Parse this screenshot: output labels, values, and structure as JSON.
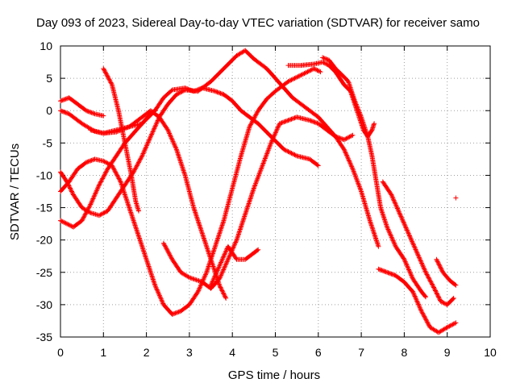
{
  "chart_data": {
    "type": "scatter",
    "title": "Day 093 of 2023, Sidereal Day-to-day VTEC variation (SDTVAR) for receiver samo",
    "xlabel": "GPS time / hours",
    "ylabel": "SDTVAR / TECUs",
    "xlim": [
      0,
      10
    ],
    "ylim": [
      -35,
      10
    ],
    "xticks": [
      "0",
      "1",
      "2",
      "3",
      "4",
      "5",
      "6",
      "7",
      "8",
      "9",
      "10"
    ],
    "yticks": [
      "-35",
      "-30",
      "-25",
      "-20",
      "-15",
      "-10",
      "-5",
      "0",
      "5",
      "10"
    ],
    "grid": true,
    "marker": "+",
    "color": "#ff0000",
    "series": [
      {
        "points": [
          [
            0,
            1.5
          ],
          [
            0.2,
            2
          ],
          [
            0.4,
            1
          ],
          [
            0.6,
            0
          ],
          [
            0.8,
            -0.5
          ],
          [
            1,
            -0.8
          ]
        ]
      },
      {
        "points": [
          [
            0,
            0
          ],
          [
            0.2,
            -0.5
          ],
          [
            0.5,
            -2
          ],
          [
            0.8,
            -3.2
          ],
          [
            1.0,
            -3.5
          ],
          [
            1.3,
            -3.3
          ],
          [
            1.6,
            -2.5
          ],
          [
            1.9,
            -1
          ],
          [
            2.1,
            0
          ],
          [
            2.3,
            -1
          ],
          [
            2.5,
            -3
          ],
          [
            2.7,
            -6
          ],
          [
            2.9,
            -10
          ],
          [
            3.1,
            -15
          ],
          [
            3.3,
            -19
          ],
          [
            3.5,
            -23
          ],
          [
            3.7,
            -27
          ],
          [
            3.85,
            -29
          ]
        ]
      },
      {
        "points": [
          [
            0.7,
            -3
          ],
          [
            1.0,
            -3.5
          ],
          [
            1.3,
            -3
          ],
          [
            1.6,
            -2.5
          ],
          [
            1.9,
            -2
          ],
          [
            2.2,
            0
          ],
          [
            2.4,
            2
          ],
          [
            2.6,
            3.2
          ],
          [
            2.9,
            3.5
          ],
          [
            3.1,
            3
          ],
          [
            3.3,
            3.5
          ],
          [
            3.6,
            3
          ],
          [
            3.8,
            2.5
          ],
          [
            4.0,
            1.5
          ],
          [
            4.2,
            0
          ],
          [
            4.4,
            -1
          ],
          [
            4.6,
            -2
          ],
          [
            4.9,
            -4
          ],
          [
            5.2,
            -6
          ],
          [
            5.5,
            -7
          ],
          [
            5.8,
            -7.5
          ],
          [
            6.0,
            -8.5
          ]
        ]
      },
      {
        "points": [
          [
            1.0,
            6.5
          ],
          [
            1.2,
            4
          ],
          [
            1.35,
            0
          ],
          [
            1.5,
            -5
          ],
          [
            1.65,
            -10
          ],
          [
            1.75,
            -14
          ],
          [
            1.82,
            -15.5
          ]
        ]
      },
      {
        "points": [
          [
            0,
            -9.5
          ],
          [
            0.15,
            -11
          ],
          [
            0.3,
            -13
          ],
          [
            0.5,
            -15
          ],
          [
            0.7,
            -15.8
          ],
          [
            0.9,
            -16.2
          ],
          [
            1.1,
            -15.5
          ],
          [
            1.3,
            -13.5
          ],
          [
            1.5,
            -11.5
          ],
          [
            1.7,
            -9.5
          ],
          [
            1.9,
            -7
          ],
          [
            2.1,
            -4
          ],
          [
            2.3,
            -1
          ],
          [
            2.5,
            1
          ],
          [
            2.7,
            2.5
          ],
          [
            2.9,
            3.2
          ],
          [
            3.2,
            3
          ],
          [
            3.5,
            4.5
          ],
          [
            3.8,
            6.5
          ],
          [
            4.1,
            8.5
          ],
          [
            4.3,
            9.3
          ],
          [
            4.5,
            8
          ],
          [
            4.8,
            6.5
          ],
          [
            5.0,
            5
          ],
          [
            5.2,
            3.5
          ],
          [
            5.4,
            2
          ],
          [
            5.7,
            0.5
          ],
          [
            6.0,
            -1
          ],
          [
            6.2,
            -2.5
          ],
          [
            6.4,
            -4
          ],
          [
            6.6,
            -6
          ],
          [
            6.8,
            -9
          ],
          [
            7.0,
            -12.5
          ],
          [
            7.2,
            -17
          ],
          [
            7.4,
            -21
          ]
        ]
      },
      {
        "points": [
          [
            0,
            -12.5
          ],
          [
            0.2,
            -11
          ],
          [
            0.4,
            -9
          ],
          [
            0.6,
            -8
          ],
          [
            0.8,
            -7.5
          ],
          [
            1.0,
            -7.8
          ],
          [
            1.2,
            -8.5
          ],
          [
            1.4,
            -11
          ],
          [
            1.6,
            -15
          ],
          [
            1.8,
            -19
          ],
          [
            2.0,
            -23
          ],
          [
            2.2,
            -27
          ],
          [
            2.4,
            -30
          ],
          [
            2.6,
            -31.5
          ],
          [
            2.8,
            -31
          ],
          [
            3.0,
            -30
          ],
          [
            3.2,
            -28
          ],
          [
            3.4,
            -25
          ],
          [
            3.6,
            -21
          ],
          [
            3.8,
            -17
          ],
          [
            4.0,
            -12
          ],
          [
            4.2,
            -7
          ],
          [
            4.4,
            -2.5
          ],
          [
            4.6,
            0
          ],
          [
            4.8,
            1.8
          ],
          [
            5.0,
            3
          ],
          [
            5.3,
            4.5
          ],
          [
            5.6,
            5.5
          ],
          [
            5.9,
            6.5
          ],
          [
            6.05,
            6
          ]
        ]
      },
      {
        "points": [
          [
            0,
            -17
          ],
          [
            0.3,
            -18
          ],
          [
            0.5,
            -17
          ],
          [
            0.7,
            -14.5
          ],
          [
            0.9,
            -11.5
          ],
          [
            1.1,
            -9
          ],
          [
            1.3,
            -7
          ],
          [
            1.5,
            -5
          ],
          [
            1.7,
            -3.5
          ],
          [
            1.9,
            -2
          ],
          [
            2.1,
            -0.5
          ],
          [
            2.2,
            0
          ]
        ]
      },
      {
        "points": [
          [
            2.4,
            -20.5
          ],
          [
            2.6,
            -23
          ],
          [
            2.8,
            -25
          ],
          [
            3.0,
            -25.8
          ],
          [
            3.3,
            -26.5
          ],
          [
            3.5,
            -27.5
          ],
          [
            3.7,
            -26
          ],
          [
            3.9,
            -23
          ],
          [
            4.1,
            -20
          ],
          [
            4.3,
            -16
          ],
          [
            4.5,
            -12
          ],
          [
            4.7,
            -8.5
          ],
          [
            4.9,
            -5
          ],
          [
            5.1,
            -2
          ],
          [
            5.3,
            -1.5
          ],
          [
            5.5,
            -1
          ],
          [
            5.8,
            -1.5
          ],
          [
            6.0,
            -2
          ],
          [
            6.2,
            -3
          ],
          [
            6.4,
            -4
          ],
          [
            6.6,
            -4.5
          ],
          [
            6.8,
            -3.8
          ]
        ]
      },
      {
        "points": [
          [
            3.5,
            -27
          ],
          [
            3.7,
            -24
          ],
          [
            3.9,
            -21
          ],
          [
            4.1,
            -23
          ],
          [
            4.3,
            -23
          ],
          [
            4.5,
            -22
          ],
          [
            4.6,
            -21.5
          ]
        ]
      },
      {
        "points": [
          [
            5.3,
            7
          ],
          [
            5.6,
            7
          ],
          [
            5.9,
            7.2
          ],
          [
            6.1,
            7.5
          ],
          [
            6.25,
            7
          ],
          [
            6.4,
            6
          ],
          [
            6.5,
            5
          ],
          [
            6.6,
            4
          ],
          [
            6.75,
            3
          ],
          [
            6.85,
            1
          ],
          [
            6.95,
            -1
          ],
          [
            7.05,
            -3
          ],
          [
            7.15,
            -4
          ],
          [
            7.25,
            -3
          ],
          [
            7.3,
            -2
          ]
        ]
      },
      {
        "points": [
          [
            6.1,
            8.2
          ],
          [
            6.25,
            7.8
          ],
          [
            6.4,
            6.5
          ],
          [
            6.6,
            5.2
          ],
          [
            6.7,
            4.5
          ],
          [
            6.85,
            1.5
          ],
          [
            7.0,
            -1
          ],
          [
            7.15,
            -4
          ],
          [
            7.25,
            -7
          ],
          [
            7.35,
            -11
          ],
          [
            7.45,
            -15
          ],
          [
            7.6,
            -18
          ],
          [
            7.8,
            -21
          ],
          [
            8.0,
            -23
          ],
          [
            8.2,
            -26
          ],
          [
            8.4,
            -28
          ],
          [
            8.5,
            -28.8
          ]
        ]
      },
      {
        "points": [
          [
            7.5,
            -11
          ],
          [
            7.7,
            -13
          ],
          [
            7.9,
            -16
          ],
          [
            8.1,
            -19
          ],
          [
            8.3,
            -22
          ],
          [
            8.5,
            -25
          ],
          [
            8.7,
            -27.5
          ],
          [
            8.85,
            -29.5
          ],
          [
            9.0,
            -30
          ],
          [
            9.15,
            -29
          ]
        ]
      },
      {
        "points": [
          [
            7.4,
            -24.5
          ],
          [
            7.6,
            -25
          ],
          [
            7.8,
            -25.5
          ],
          [
            8.0,
            -26.5
          ],
          [
            8.2,
            -28
          ],
          [
            8.4,
            -31
          ],
          [
            8.6,
            -33.5
          ],
          [
            8.8,
            -34.3
          ],
          [
            9.0,
            -33.5
          ],
          [
            9.2,
            -32.8
          ]
        ]
      },
      {
        "points": [
          [
            8.75,
            -23
          ],
          [
            8.9,
            -25
          ],
          [
            9.05,
            -26.2
          ],
          [
            9.2,
            -27
          ]
        ]
      },
      {
        "points": [
          [
            9.2,
            -13.5
          ]
        ]
      }
    ]
  }
}
